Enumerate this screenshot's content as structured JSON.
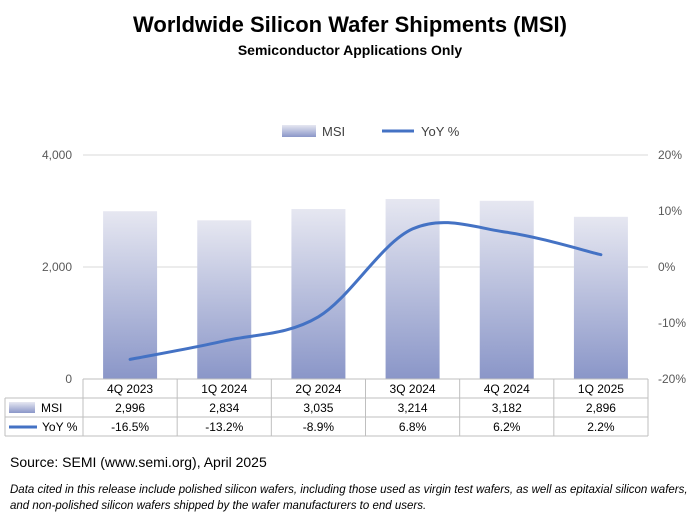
{
  "title": "Worldwide Silicon Wafer Shipments (MSI)",
  "subtitle": "Semiconductor Applications Only",
  "source": "Source: SEMI (www.semi.org), April 2025",
  "footnote": "Data cited in this release include polished silicon wafers, including those used as virgin test wafers, as well as epitaxial silicon wafers, and non-polished silicon wafers shipped by the wafer manufacturers to end users.",
  "colors": {
    "bar_top": "#e6e7f1",
    "bar_bottom": "#8a96c8",
    "line": "#4472c4"
  },
  "chart_data": {
    "type": "bar+line",
    "categories": [
      "4Q 2023",
      "1Q 2024",
      "2Q 2024",
      "3Q 2024",
      "4Q 2024",
      "1Q 2025"
    ],
    "series": [
      {
        "name": "MSI",
        "type": "bar",
        "axis": "left",
        "values": [
          2996,
          2834,
          3035,
          3214,
          3182,
          2896
        ],
        "labels": [
          "2,996",
          "2,834",
          "3,035",
          "3,214",
          "3,182",
          "2,896"
        ]
      },
      {
        "name": "YoY %",
        "type": "line",
        "axis": "right",
        "values": [
          -16.5,
          -13.2,
          -8.9,
          6.8,
          6.2,
          2.2
        ],
        "labels": [
          "-16.5%",
          "-13.2%",
          "-8.9%",
          "6.8%",
          "6.2%",
          "2.2%"
        ]
      }
    ],
    "left_axis": {
      "min": 0,
      "max": 4000,
      "ticks": [
        0,
        2000,
        4000
      ],
      "tick_labels": [
        "0",
        "2,000",
        "4,000"
      ]
    },
    "right_axis": {
      "min": -20,
      "max": 20,
      "ticks": [
        -20,
        -10,
        0,
        10,
        20
      ],
      "tick_labels": [
        "-20%",
        "-10%",
        "0%",
        "10%",
        "20%"
      ]
    },
    "legend": [
      "MSI",
      "YoY %"
    ],
    "legend_position": "top-center",
    "data_table": true
  }
}
